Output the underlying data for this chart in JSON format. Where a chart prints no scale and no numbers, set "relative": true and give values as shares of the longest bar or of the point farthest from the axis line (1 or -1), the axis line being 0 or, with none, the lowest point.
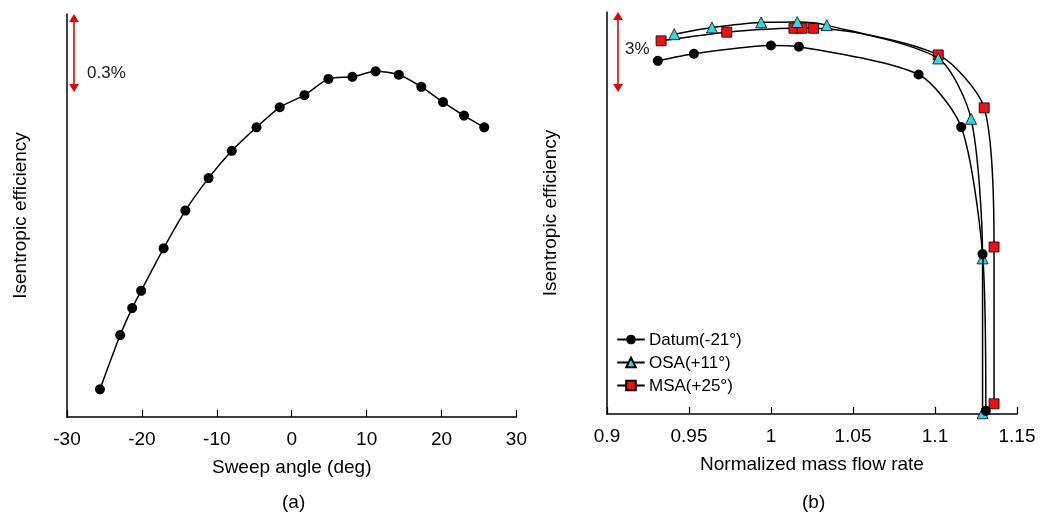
{
  "chart_data": [
    {
      "type": "line",
      "xlabel": "Sweep angle (deg)",
      "ylabel": "Isentropic efficiency",
      "relative": true,
      "xlim": [
        -30,
        30
      ],
      "xticks": [
        -30,
        -20,
        -10,
        0,
        10,
        20,
        30
      ],
      "marker": "circle",
      "grid": false,
      "legend": false,
      "annotations": [
        "0.3%",
        "(a)"
      ],
      "series": [
        {
          "color": "#000000",
          "x": [
            -25.6,
            -22.9,
            -21.3,
            -20.1,
            -17.1,
            -14.2,
            -11.1,
            -8.0,
            -4.7,
            -1.6,
            1.7,
            4.9,
            8.1,
            11.2,
            14.3,
            17.3,
            20.2,
            23.0,
            25.7
          ],
          "values": [
            0.08,
            0.237,
            0.315,
            0.365,
            0.488,
            0.597,
            0.691,
            0.77,
            0.838,
            0.896,
            0.931,
            0.978,
            0.984,
            1,
            0.99,
            0.955,
            0.911,
            0.872,
            0.838
          ]
        }
      ]
    },
    {
      "type": "line",
      "xlabel": "Normalized mass flow rate",
      "ylabel": "Isentropic efficiency",
      "relative": true,
      "xlim": [
        0.9,
        1.15
      ],
      "xticks": [
        0.9,
        0.95,
        1,
        1.05,
        1.1,
        1.15
      ],
      "grid": false,
      "legend": "bottom left",
      "annotations": [
        "3%",
        "(b)"
      ],
      "series": [
        {
          "name": "Datum(-21°)",
          "color": "#000000",
          "marker": "circle",
          "x": [
            0.931,
            0.953,
            1.0,
            1.017,
            1.09,
            1.116,
            1.129,
            1.131
          ],
          "values": [
            0.901,
            0.919,
            0.94,
            0.937,
            0.866,
            0.732,
            0.408,
            0.008
          ]
        },
        {
          "name": "OSA(+11°)",
          "color": "#33d6e0",
          "marker": "triangle",
          "x": [
            0.941,
            0.964,
            0.994,
            1.016,
            1.034,
            1.102,
            1.122,
            1.129,
            1.129
          ],
          "values": [
            0.969,
            0.986,
            0.999,
            1,
            0.992,
            0.907,
            0.753,
            0.397,
            0.002
          ]
        },
        {
          "name": "MSA(+25°)",
          "color": "#ee1111",
          "marker": "square",
          "x": [
            0.933,
            0.973,
            1.014,
            1.019,
            1.026,
            1.102,
            1.13,
            1.136,
            1.136
          ],
          "values": [
            0.952,
            0.974,
            0.984,
            0.984,
            0.984,
            0.916,
            0.781,
            0.426,
            0.026
          ]
        }
      ]
    }
  ]
}
